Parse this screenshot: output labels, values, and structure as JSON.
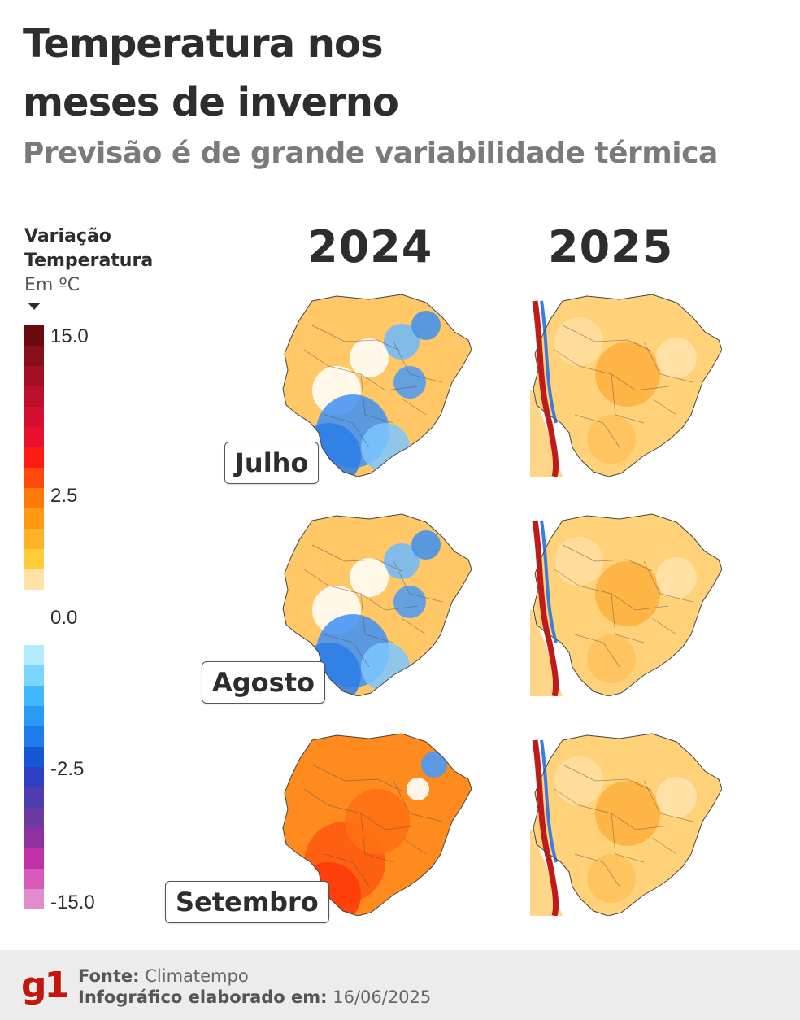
{
  "header": {
    "title_line1": "Temperatura nos",
    "title_line2": "meses de inverno",
    "subtitle": "Previsão é de grande variabilidade térmica"
  },
  "legend": {
    "title_line1": "Variação",
    "title_line2": "Temperatura",
    "unit": "Em ºC",
    "ticks": [
      "15.0",
      "2.5",
      "0.0",
      "-2.5",
      "-15.0"
    ],
    "warm_colors": [
      "#6b0a0e",
      "#86101a",
      "#a50f23",
      "#bd0f2c",
      "#d50f32",
      "#e8102c",
      "#ff1a12",
      "#ff4a0a",
      "#ff7a08",
      "#ff9a12",
      "#ffb128",
      "#ffcd3a",
      "#ffe3a6"
    ],
    "cool_colors": [
      "#b3ecff",
      "#7ad6ff",
      "#3fb8ff",
      "#2a9af7",
      "#1d7bea",
      "#1456d4",
      "#2f3fc3",
      "#4f3cae",
      "#6d3aa3",
      "#9030a0",
      "#c030a6",
      "#d85aba",
      "#e08ccf"
    ]
  },
  "years": [
    "2024",
    "2025"
  ],
  "months": [
    "Julho",
    "Agosto",
    "Setembro"
  ],
  "maps": [
    {
      "month": "Julho",
      "year": "2024",
      "pattern": "mixed-cold"
    },
    {
      "month": "Julho",
      "year": "2025",
      "pattern": "warm"
    },
    {
      "month": "Agosto",
      "year": "2024",
      "pattern": "mixed-cold"
    },
    {
      "month": "Agosto",
      "year": "2025",
      "pattern": "warm"
    },
    {
      "month": "Setembro",
      "year": "2024",
      "pattern": "hot"
    },
    {
      "month": "Setembro",
      "year": "2025",
      "pattern": "warm"
    }
  ],
  "footer": {
    "logo": "g1",
    "source_label": "Fonte:",
    "source_value": "Climatempo",
    "made_label": "Infográfico elaborado em:",
    "made_value": "16/06/2025"
  }
}
